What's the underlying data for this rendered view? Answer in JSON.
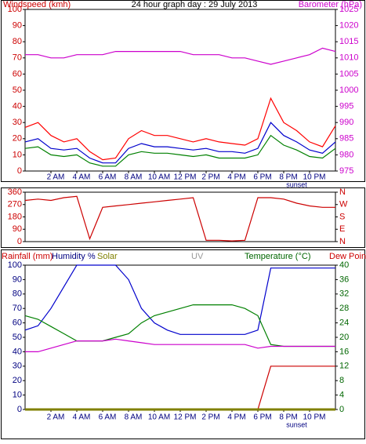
{
  "chart_data": [
    {
      "type": "line",
      "title": "24 hour graph day : 29 July 2013",
      "y_label": "Windspeed (kmh)",
      "y2_label": "Barometer (hPa)",
      "y_color": "#cc0000",
      "y2_color": "#cc00cc",
      "x": [
        0,
        1,
        2,
        3,
        4,
        5,
        6,
        7,
        8,
        9,
        10,
        11,
        12,
        13,
        14,
        15,
        16,
        17,
        18,
        19,
        20,
        21,
        22,
        23,
        24
      ],
      "xlim": [
        0,
        24
      ],
      "xticks": [
        {
          "value": 2,
          "label": "2 AM"
        },
        {
          "value": 4,
          "label": "4 AM"
        },
        {
          "value": 6,
          "label": "6 AM"
        },
        {
          "value": 8,
          "label": "8 AM"
        },
        {
          "value": 10,
          "label": "10 AM"
        },
        {
          "value": 12,
          "label": "12 PM"
        },
        {
          "value": 14,
          "label": "2 PM"
        },
        {
          "value": 16,
          "label": "4 PM"
        },
        {
          "value": 18,
          "label": "6 PM"
        },
        {
          "value": 20,
          "label": "8 PM"
        },
        {
          "value": 22,
          "label": "10 PM"
        }
      ],
      "ylim": [
        0,
        100
      ],
      "yticks": [
        0,
        10,
        20,
        30,
        40,
        50,
        60,
        70,
        80,
        90,
        100
      ],
      "y2lim": [
        975,
        1025
      ],
      "y2ticks": [
        975,
        980,
        985,
        990,
        995,
        1000,
        1005,
        1010,
        1015,
        1020,
        1025
      ],
      "annotations": [
        {
          "text": "sunset",
          "x": 21
        }
      ],
      "series": [
        {
          "color": "#ff0000",
          "values": [
            27,
            30,
            22,
            18,
            20,
            12,
            7,
            8,
            20,
            25,
            22,
            22,
            20,
            18,
            20,
            18,
            17,
            16,
            20,
            45,
            30,
            25,
            18,
            15,
            28
          ]
        },
        {
          "color": "#0000cc",
          "values": [
            18,
            20,
            14,
            13,
            14,
            8,
            5,
            5,
            14,
            17,
            15,
            15,
            14,
            13,
            14,
            12,
            12,
            11,
            14,
            30,
            22,
            18,
            13,
            11,
            18
          ]
        },
        {
          "color": "#008000",
          "values": [
            14,
            15,
            10,
            9,
            10,
            5,
            3,
            3,
            10,
            12,
            11,
            11,
            10,
            9,
            10,
            8,
            8,
            8,
            10,
            22,
            16,
            13,
            9,
            8,
            14
          ]
        },
        {
          "color": "#cc00cc",
          "axis": "y2",
          "values": [
            1011,
            1011,
            1010,
            1010,
            1011,
            1011,
            1011,
            1012,
            1012,
            1012,
            1012,
            1012,
            1012,
            1011,
            1011,
            1011,
            1010,
            1010,
            1009,
            1008,
            1009,
            1010,
            1011,
            1013,
            1012
          ]
        }
      ]
    },
    {
      "type": "line",
      "y_color": "#cc0000",
      "y2_color": "#cc0000",
      "x": [
        0,
        1,
        2,
        3,
        4,
        5,
        6,
        7,
        8,
        9,
        10,
        11,
        12,
        13,
        14,
        15,
        16,
        17,
        18,
        19,
        20,
        21,
        22,
        23,
        24
      ],
      "xlim": [
        0,
        24
      ],
      "ylim": [
        0,
        360
      ],
      "yticks": [
        0,
        90,
        180,
        270,
        360
      ],
      "y2lim": [
        0,
        360
      ],
      "y2ticks": [
        {
          "value": 0,
          "label": "N"
        },
        {
          "value": 90,
          "label": "E"
        },
        {
          "value": 180,
          "label": "S"
        },
        {
          "value": 270,
          "label": "W"
        },
        {
          "value": 360,
          "label": "N"
        }
      ],
      "series": [
        {
          "color": "#cc0000",
          "values": [
            300,
            310,
            300,
            320,
            330,
            20,
            250,
            260,
            270,
            280,
            290,
            300,
            310,
            320,
            10,
            10,
            5,
            10,
            320,
            320,
            310,
            280,
            260,
            250,
            250
          ]
        }
      ]
    },
    {
      "type": "line",
      "y_color": "#000080",
      "y2_color": "#006600",
      "uv_label": "UV",
      "x": [
        0,
        1,
        2,
        3,
        4,
        5,
        6,
        7,
        8,
        9,
        10,
        11,
        12,
        13,
        14,
        15,
        16,
        17,
        18,
        19,
        20,
        21,
        22,
        23,
        24
      ],
      "xlim": [
        0,
        24
      ],
      "xticks": [
        {
          "value": 2,
          "label": "2 AM"
        },
        {
          "value": 4,
          "label": "4 AM"
        },
        {
          "value": 6,
          "label": "6 AM"
        },
        {
          "value": 8,
          "label": "8 AM"
        },
        {
          "value": 10,
          "label": "10 AM"
        },
        {
          "value": 12,
          "label": "12 PM"
        },
        {
          "value": 14,
          "label": "2 PM"
        },
        {
          "value": 16,
          "label": "4 PM"
        },
        {
          "value": 18,
          "label": "6 PM"
        },
        {
          "value": 20,
          "label": "8 PM"
        },
        {
          "value": 22,
          "label": "10 PM"
        }
      ],
      "ylim": [
        0,
        100
      ],
      "yticks": [
        0,
        10,
        20,
        30,
        40,
        50,
        60,
        70,
        80,
        90,
        100
      ],
      "y2lim": [
        0,
        40
      ],
      "y2ticks": [
        0,
        4,
        8,
        12,
        16,
        20,
        24,
        28,
        32,
        36,
        40
      ],
      "annotations": [
        {
          "text": "sunset",
          "x": 21
        }
      ],
      "series": [
        {
          "name": "Rainfall (mm)",
          "color": "#cc0000",
          "values": [
            0,
            0,
            0,
            0,
            0,
            0,
            0,
            0,
            0,
            0,
            0,
            0,
            0,
            0,
            0,
            0,
            0,
            0,
            0,
            30,
            30,
            30,
            30,
            30,
            30
          ]
        },
        {
          "name": "Humidity %",
          "color": "#0000cc",
          "values": [
            55,
            58,
            70,
            85,
            100,
            100,
            100,
            100,
            90,
            70,
            60,
            55,
            52,
            52,
            52,
            52,
            52,
            52,
            55,
            98,
            98,
            98,
            98,
            98,
            98
          ]
        },
        {
          "name": "Solar",
          "color": "#808000",
          "values": [
            0,
            0,
            0,
            0,
            0,
            0,
            0,
            0,
            0,
            0,
            0,
            0,
            0,
            0,
            0,
            0,
            0,
            0,
            0,
            0,
            0,
            0,
            0,
            0,
            0
          ]
        },
        {
          "name": "Temperature (°C)",
          "color": "#008000",
          "axis": "y2",
          "values": [
            26,
            25,
            23,
            21,
            19,
            19,
            19,
            20,
            21,
            24,
            26,
            27,
            28,
            29,
            29,
            29,
            29,
            28,
            26,
            18,
            17.5,
            17.5,
            17.5,
            17.5,
            17.5
          ]
        },
        {
          "name": "Dew Point",
          "color": "#cc00cc",
          "axis": "y2",
          "values": [
            16,
            16,
            17,
            18,
            19,
            19,
            19,
            19.5,
            19,
            18.5,
            18,
            18,
            18,
            18,
            18,
            18,
            18,
            18,
            17,
            17.5,
            17.5,
            17.5,
            17.5,
            17.5,
            17.5
          ]
        }
      ]
    }
  ]
}
